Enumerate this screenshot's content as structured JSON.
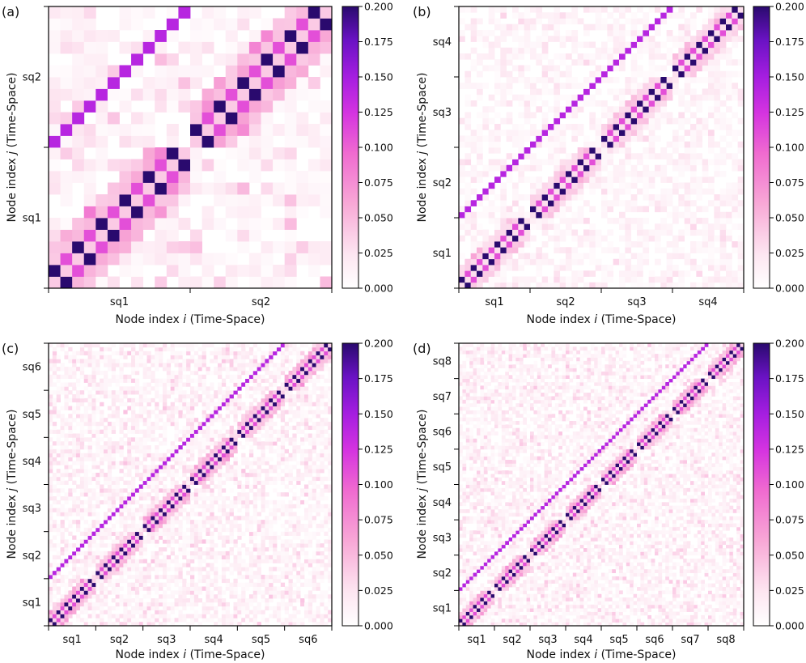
{
  "colors": {
    "colormap": [
      "#ffffff",
      "#fde6f1",
      "#f8a8d6",
      "#f06ad0",
      "#d534e0",
      "#a51ee0",
      "#6a12c4",
      "#2a0a6e"
    ],
    "axis": "#000000",
    "text": "#111111"
  },
  "chart_data": [
    {
      "type": "heatmap",
      "panel_label": "(a)",
      "xlabel_prefix": "Node index ",
      "xlabel_italic": "i",
      "xlabel_suffix": " (Time-Space)",
      "ylabel_prefix": "Node index ",
      "ylabel_italic": "j",
      "ylabel_suffix": " (Time-Space)",
      "n_blocks": 2,
      "nodes_per_block": 12,
      "block_labels": [
        "sq1",
        "sq2"
      ],
      "colorbar": {
        "vmin": 0.0,
        "vmax": 0.2,
        "ticks": [
          "0.000",
          "0.025",
          "0.050",
          "0.075",
          "0.100",
          "0.125",
          "0.150",
          "0.175",
          "0.200"
        ]
      },
      "description": "main diagonal within each block alternates 0.2 and 0; cross-block diagonals approx 0.14; off-diagonal background 0.0-0.05"
    },
    {
      "type": "heatmap",
      "panel_label": "(b)",
      "xlabel_prefix": "Node index ",
      "xlabel_italic": "i",
      "xlabel_suffix": " (Time-Space)",
      "ylabel_prefix": "Node index ",
      "ylabel_italic": "j",
      "ylabel_suffix": " (Time-Space)",
      "n_blocks": 4,
      "nodes_per_block": 12,
      "block_labels": [
        "sq1",
        "sq2",
        "sq3",
        "sq4"
      ],
      "colorbar": {
        "vmin": 0.0,
        "vmax": 0.2,
        "ticks": [
          "0.000",
          "0.025",
          "0.050",
          "0.075",
          "0.100",
          "0.125",
          "0.150",
          "0.175",
          "0.200"
        ]
      },
      "description": "strong main diagonal 0.2 with alternating checkerboard in blocks; off-diagonal lines approx 0.14 linking blocks"
    },
    {
      "type": "heatmap",
      "panel_label": "(c)",
      "xlabel_prefix": "Node index ",
      "xlabel_italic": "i",
      "xlabel_suffix": " (Time-Space)",
      "ylabel_prefix": "Node index ",
      "ylabel_italic": "j",
      "ylabel_suffix": " (Time-Space)",
      "n_blocks": 6,
      "nodes_per_block": 12,
      "block_labels": [
        "sq1",
        "sq2",
        "sq3",
        "sq4",
        "sq5",
        "sq6"
      ],
      "colorbar": {
        "vmin": 0.0,
        "vmax": 0.2,
        "ticks": [
          "0.000",
          "0.025",
          "0.050",
          "0.075",
          "0.100",
          "0.125",
          "0.150",
          "0.175",
          "0.200"
        ]
      },
      "description": "main diagonal 0.2; upper blocks show parallel off-diagonal lines; noisy background up to 0.1"
    },
    {
      "type": "heatmap",
      "panel_label": "(d)",
      "xlabel_prefix": "Node index ",
      "xlabel_italic": "i",
      "xlabel_suffix": " (Time-Space)",
      "ylabel_prefix": "Node index ",
      "ylabel_italic": "j",
      "ylabel_suffix": " (Time-Space)",
      "n_blocks": 8,
      "nodes_per_block": 10,
      "block_labels": [
        "sq1",
        "sq2",
        "sq3",
        "sq4",
        "sq5",
        "sq6",
        "sq7",
        "sq8"
      ],
      "colorbar": {
        "vmin": 0.0,
        "vmax": 0.2,
        "ticks": [
          "0.000",
          "0.025",
          "0.050",
          "0.075",
          "0.100",
          "0.125",
          "0.150",
          "0.175",
          "0.200"
        ]
      },
      "description": "main diagonal 0.2 across all blocks; off-diagonal lines in upper blocks; scattered noise"
    }
  ]
}
